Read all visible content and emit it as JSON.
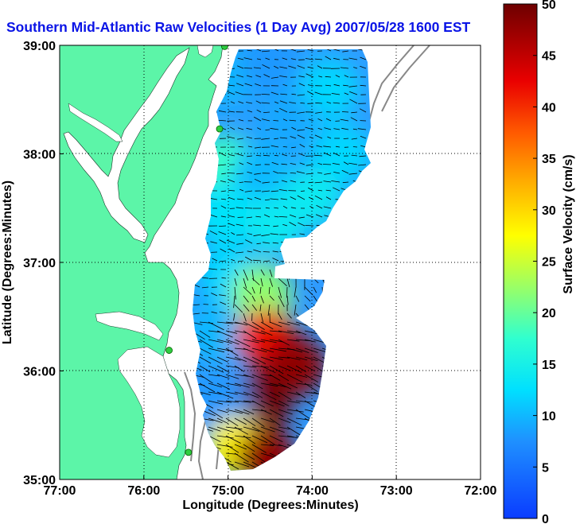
{
  "title": "Southern Mid-Atlantic Raw Velocities (1 Day Avg) 2007/05/28 1600 EST",
  "axes": {
    "xlabel": "Longitude (Degrees:Minutes)",
    "ylabel": "Latitude (Degrees:Minutes)",
    "x_ticks": [
      "77:00",
      "76:00",
      "75:00",
      "74:00",
      "73:00",
      "72:00"
    ],
    "y_ticks": [
      "39:00",
      "38:00",
      "37:00",
      "36:00",
      "35:00"
    ]
  },
  "colorbar": {
    "label": "Surface Velocity (cm/s)",
    "ticks": [
      "0",
      "5",
      "10",
      "15",
      "20",
      "25",
      "30",
      "35",
      "40",
      "45",
      "50"
    ],
    "min": 0,
    "max": 50,
    "colormap": "jet"
  },
  "colors": {
    "land": "#5cf5a8",
    "title": "#0a14e6",
    "vectors": "#000000",
    "isobaths": "#888888",
    "radar_sites": "#2ecc40"
  },
  "map": {
    "lon_range": [
      -77,
      -72
    ],
    "lat_range": [
      35,
      39
    ],
    "grid": "dotted",
    "radar_sites": [
      {
        "lon": -75.04,
        "lat": 38.99
      },
      {
        "lon": -75.1,
        "lat": 38.23
      },
      {
        "lon": -75.7,
        "lat": 36.19
      },
      {
        "lon": -75.47,
        "lat": 35.25
      }
    ],
    "velocity_regions": [
      {
        "lon": -75.05,
        "lat": 38.7,
        "speed": 10
      },
      {
        "lon": -74.5,
        "lat": 38.8,
        "speed": 8
      },
      {
        "lon": -73.8,
        "lat": 38.6,
        "speed": 12
      },
      {
        "lon": -74.3,
        "lat": 38.3,
        "speed": 9
      },
      {
        "lon": -73.65,
        "lat": 38.0,
        "speed": 12
      },
      {
        "lon": -75.05,
        "lat": 37.9,
        "speed": 18
      },
      {
        "lon": -74.6,
        "lat": 37.8,
        "speed": 10
      },
      {
        "lon": -74.0,
        "lat": 37.6,
        "speed": 14
      },
      {
        "lon": -75.05,
        "lat": 37.45,
        "speed": 13
      },
      {
        "lon": -74.45,
        "lat": 37.35,
        "speed": 14
      },
      {
        "lon": -75.0,
        "lat": 36.9,
        "speed": 12
      },
      {
        "lon": -74.6,
        "lat": 36.7,
        "speed": 22
      },
      {
        "lon": -75.15,
        "lat": 36.35,
        "speed": 10
      },
      {
        "lon": -74.55,
        "lat": 36.3,
        "speed": 42
      },
      {
        "lon": -74.2,
        "lat": 36.05,
        "speed": 48
      },
      {
        "lon": -74.6,
        "lat": 35.7,
        "speed": 50
      },
      {
        "lon": -75.1,
        "lat": 35.65,
        "speed": 8
      },
      {
        "lon": -74.9,
        "lat": 35.3,
        "speed": 28
      },
      {
        "lon": -74.55,
        "lat": 35.2,
        "speed": 48
      }
    ]
  }
}
